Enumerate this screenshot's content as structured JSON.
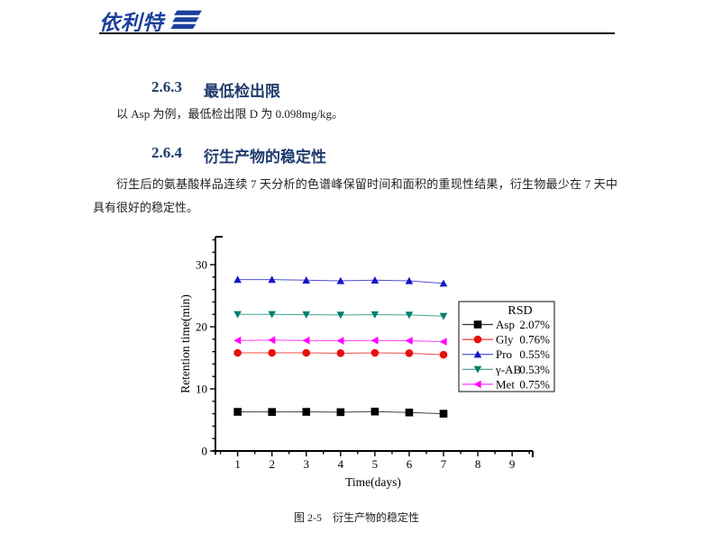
{
  "header": {
    "logo_text": "依利特",
    "logo_color": "#1c3f9c"
  },
  "sections": [
    {
      "number": "2.6.3",
      "title": "最低检出限",
      "body": "以 Asp 为例，最低检出限 D 为 0.098mg/kg。"
    },
    {
      "number": "2.6.4",
      "title": "衍生产物的稳定性",
      "body": "衍生后的氨基酸样品连续 7 天分析的色谱峰保留时间和面积的重现性结果，衍生物最少在 7 天中具有很好的稳定性。"
    }
  ],
  "figure": {
    "caption": "图 2-5　衍生产物的稳定性"
  },
  "chart_data": {
    "type": "line",
    "title": "",
    "xlabel": "Time(days)",
    "ylabel": "Retention time(min)",
    "xlim": [
      0.3,
      9.6
    ],
    "ylim": [
      0,
      34.5
    ],
    "x_ticks": [
      1,
      2,
      3,
      4,
      5,
      6,
      7,
      8,
      9
    ],
    "y_ticks": [
      0,
      10,
      20,
      30
    ],
    "x_minor_step": 0.5,
    "y_minor_step": 2,
    "grid": false,
    "legend_title": "RSD",
    "legend_position": "right",
    "x": [
      1,
      2,
      3,
      4,
      5,
      6,
      7
    ],
    "series": [
      {
        "name": "Asp",
        "rsd": "2.07%",
        "color": "#000000",
        "marker": "square",
        "values": [
          6.3,
          6.28,
          6.3,
          6.25,
          6.35,
          6.2,
          6.0
        ]
      },
      {
        "name": "Gly",
        "rsd": "0.76%",
        "color": "#e8100c",
        "marker": "circle",
        "values": [
          15.8,
          15.8,
          15.8,
          15.75,
          15.8,
          15.75,
          15.5
        ]
      },
      {
        "name": "Pro",
        "rsd": "0.55%",
        "color": "#1414c8",
        "marker": "triangle-up",
        "values": [
          27.6,
          27.6,
          27.5,
          27.4,
          27.5,
          27.4,
          27.0
        ]
      },
      {
        "name": "γ-AB",
        "rsd": "0.53%",
        "color": "#00806e",
        "marker": "triangle-down",
        "values": [
          22.0,
          22.0,
          21.95,
          21.9,
          21.95,
          21.9,
          21.7
        ]
      },
      {
        "name": "Met",
        "rsd": "0.75%",
        "color": "#ff00ff",
        "marker": "triangle-left",
        "values": [
          17.8,
          17.85,
          17.8,
          17.75,
          17.8,
          17.75,
          17.6
        ]
      }
    ]
  }
}
